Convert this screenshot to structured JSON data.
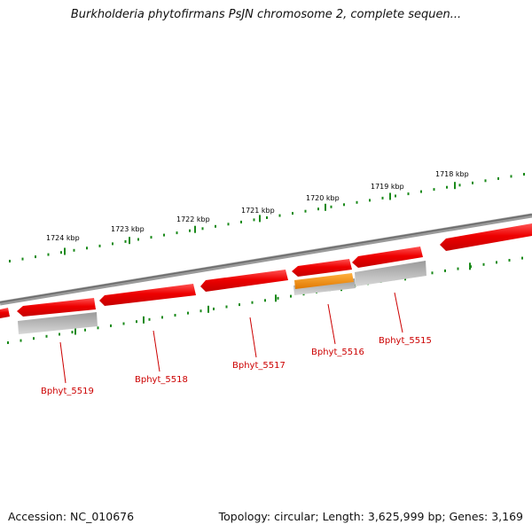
{
  "title": "Burkholderia phytofirmans PsJN chromosome 2, complete sequen...",
  "footer": {
    "accession": "Accession: NC_010676",
    "summary": "Topology: circular; Length: 3,625,999 bp; Genes: 3,169"
  },
  "scale": {
    "unit": "kbp",
    "ticks": [
      "1724 kbp",
      "1723 kbp",
      "1722 kbp",
      "1721 kbp",
      "1720 kbp",
      "1719 kbp",
      "1718 kbp"
    ]
  },
  "genes": [
    {
      "label": "Bphyt_5519"
    },
    {
      "label": "Bphyt_5518"
    },
    {
      "label": "Bphyt_5517"
    },
    {
      "label": "Bphyt_5516"
    },
    {
      "label": "Bphyt_5515"
    }
  ],
  "colors": {
    "gene": "#ee0000",
    "gene_highlight": "#f08c00",
    "shadow": "#b8b8b8",
    "tick": "#1a8a1a",
    "backbone": "#808080",
    "label": "#cc0000",
    "leader": "#cc0000"
  }
}
